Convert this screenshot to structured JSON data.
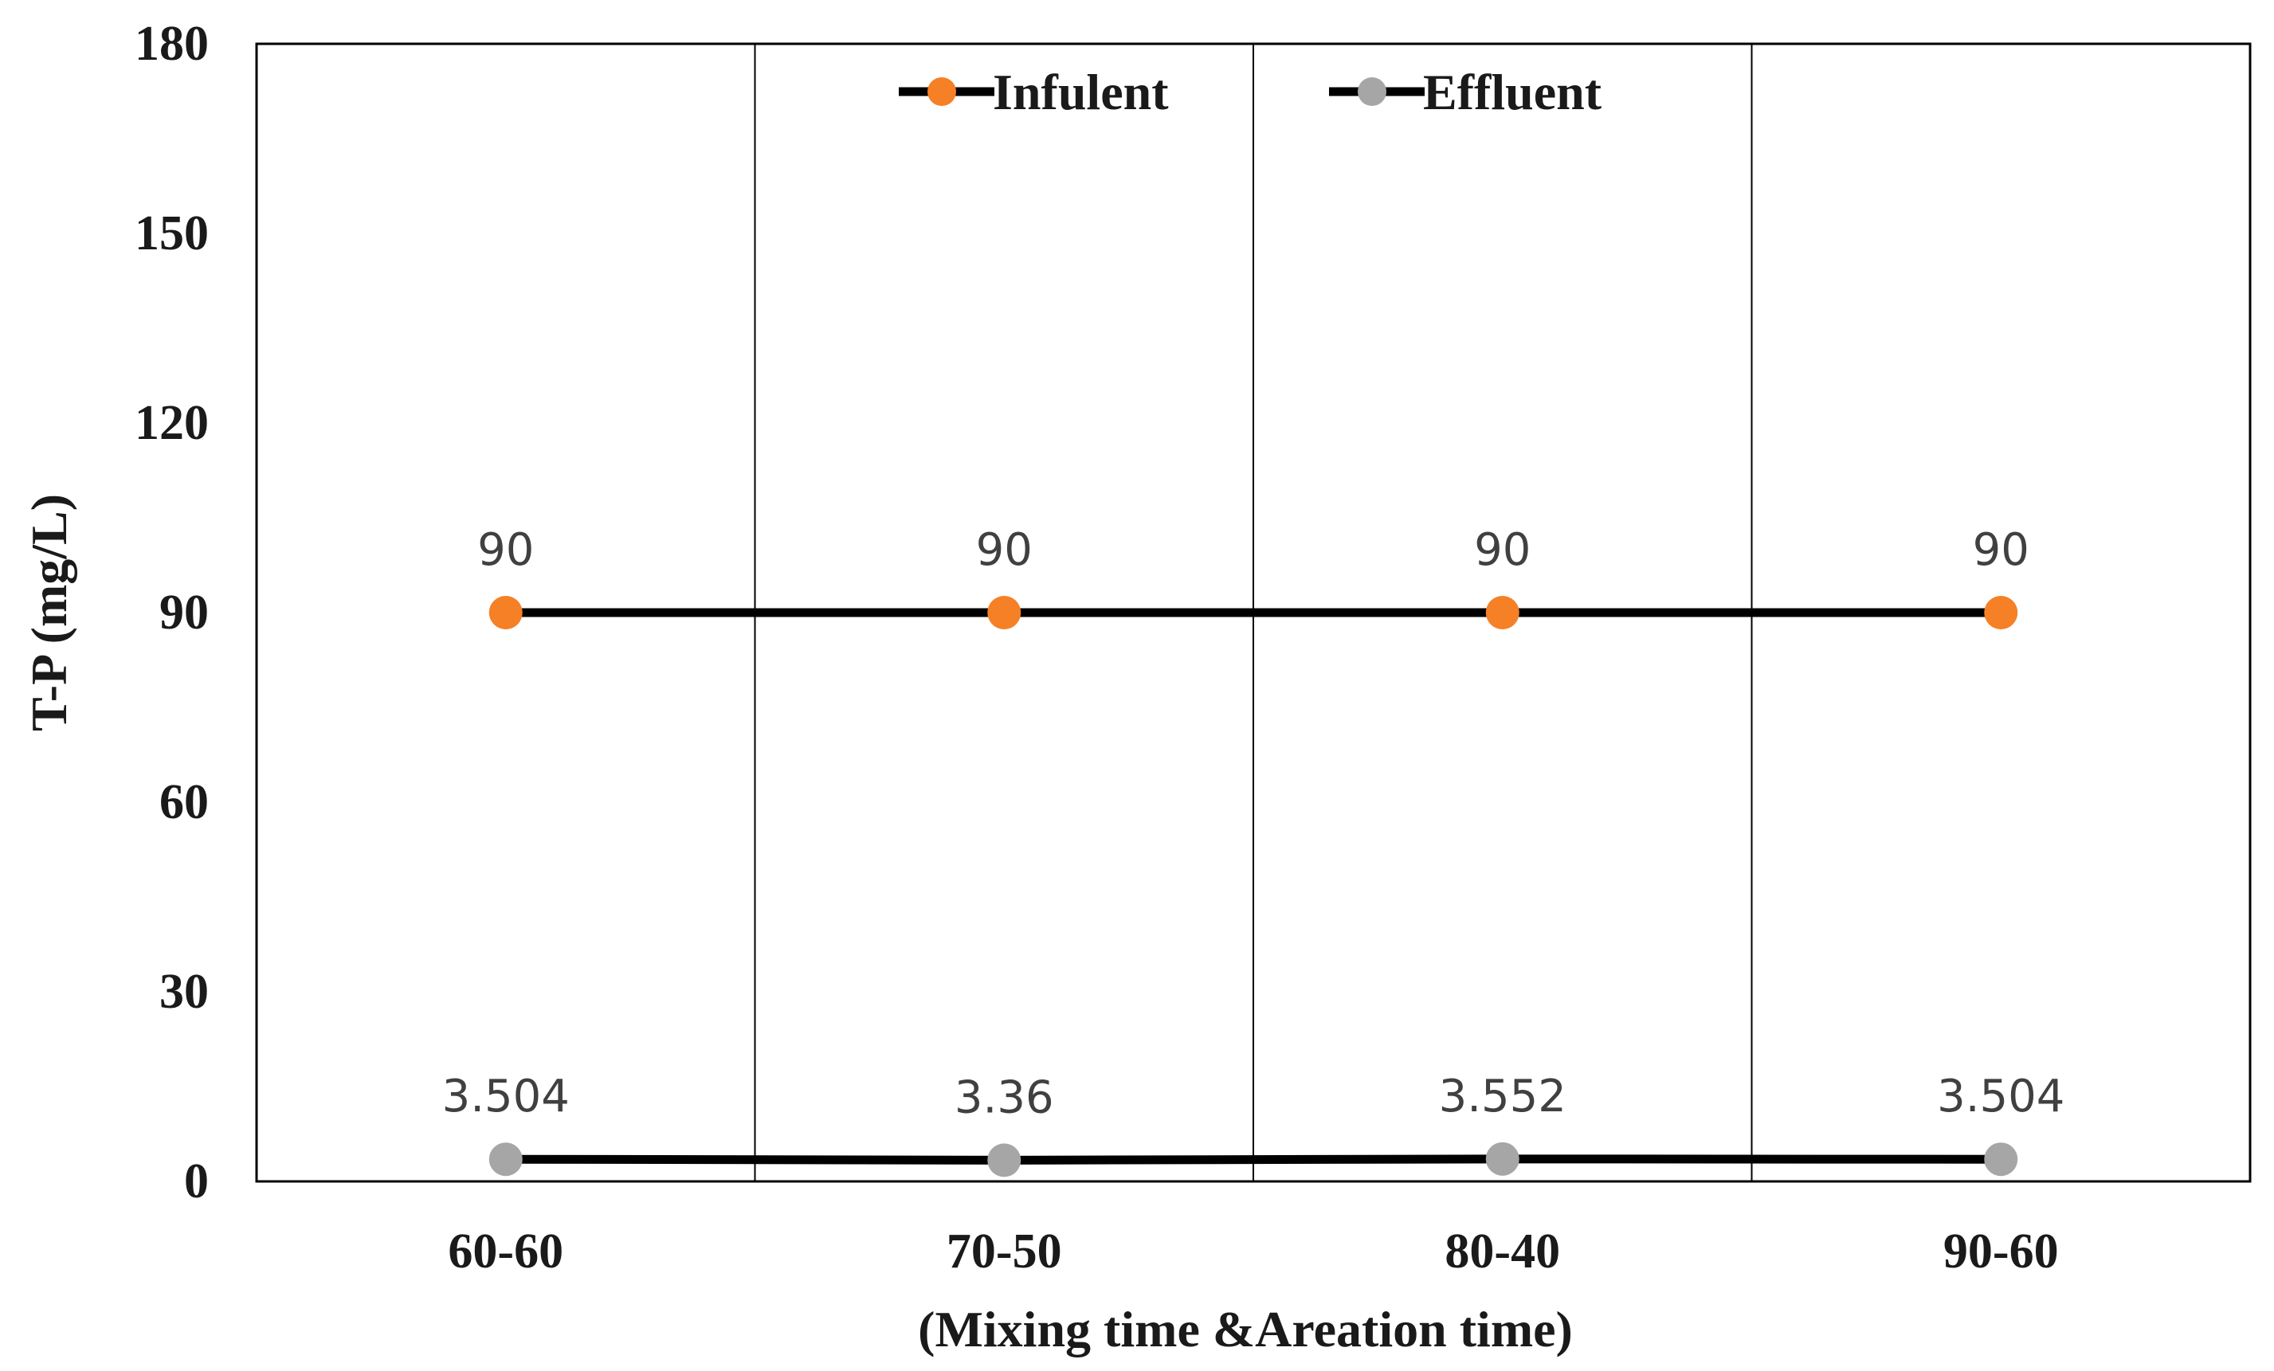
{
  "chart_data": {
    "type": "line",
    "title": "",
    "xlabel": "(Mixing time &Areation time)",
    "ylabel": "T-P (mg/L)",
    "categories": [
      "60-60",
      "70-50",
      "80-40",
      "90-60"
    ],
    "ylim": [
      0,
      180
    ],
    "yticks": [
      0,
      30,
      60,
      90,
      120,
      150,
      180
    ],
    "grid": "vertical",
    "legend_position": "top",
    "series": [
      {
        "name": "Infulent",
        "values": [
          90,
          90,
          90,
          90
        ],
        "labels": [
          "90",
          "90",
          "90",
          "90"
        ],
        "marker_color": "#f58025",
        "line_color": "#000000"
      },
      {
        "name": "Effluent",
        "values": [
          3.504,
          3.36,
          3.552,
          3.504
        ],
        "labels": [
          "3.504",
          "3.36",
          "3.552",
          "3.504"
        ],
        "marker_color": "#a6a6a6",
        "line_color": "#000000"
      }
    ]
  }
}
